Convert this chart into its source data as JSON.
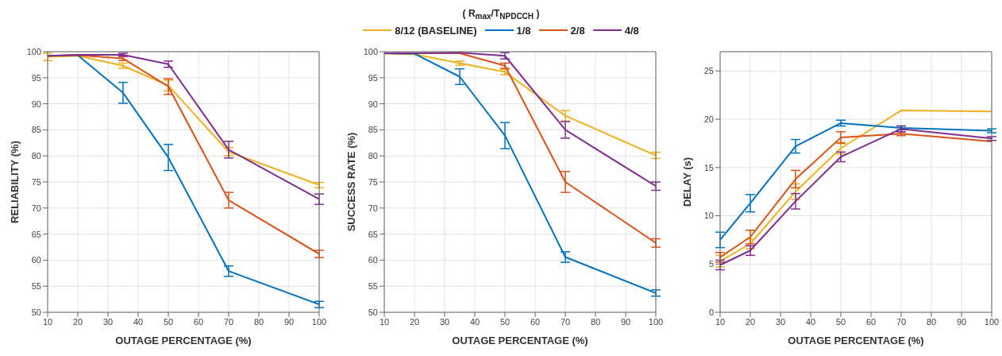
{
  "chart_data": [
    {
      "type": "line",
      "xlabel": "OUTAGE PERCENTAGE (%)",
      "ylabel": "RELIABILITY (%)",
      "legend_title": "( R$_{max}$/T$_{NPDCCH}$ )",
      "legend": "top",
      "grid": true,
      "marker": "none",
      "line_style": "solid",
      "x": [
        10,
        20,
        35,
        50,
        70,
        100
      ],
      "xlim": [
        10,
        100
      ],
      "xticks": [
        10,
        20,
        30,
        40,
        50,
        60,
        70,
        80,
        90,
        100
      ],
      "ylim": [
        50,
        100
      ],
      "yticks": [
        50,
        55,
        60,
        65,
        70,
        75,
        80,
        85,
        90,
        95,
        100
      ],
      "series": [
        {
          "name": "8/12 (BASELINE)",
          "color": "#edb120",
          "values": [
            99,
            99.2,
            97.3,
            93.5,
            80.8,
            74.4
          ],
          "errors": [
            0.7,
            null,
            0.5,
            1,
            0.8,
            0.5
          ]
        },
        {
          "name": "1/8",
          "color": "#0072bd",
          "values": [
            99.2,
            99.3,
            92.1,
            79.7,
            57.9,
            51.5
          ],
          "errors": [
            null,
            null,
            2,
            2.5,
            1,
            0.6
          ]
        },
        {
          "name": "2/8",
          "color": "#d95319",
          "values": [
            99.2,
            99.3,
            98.7,
            93.3,
            71.5,
            61.2
          ],
          "errors": [
            null,
            null,
            0.4,
            1.5,
            1.5,
            0.7
          ]
        },
        {
          "name": "4/8",
          "color": "#7e2f8e",
          "values": [
            99.2,
            99.4,
            99.4,
            97.6,
            81.2,
            71.7
          ],
          "errors": [
            null,
            null,
            0.3,
            0.6,
            1.6,
            1
          ]
        }
      ]
    },
    {
      "type": "line",
      "xlabel": "OUTAGE PERCENTAGE (%)",
      "ylabel": "SUCCESS RATE (%)",
      "grid": true,
      "marker": "none",
      "line_style": "solid",
      "x": [
        10,
        20,
        35,
        50,
        70,
        100
      ],
      "xlim": [
        10,
        100
      ],
      "xticks": [
        10,
        20,
        30,
        40,
        50,
        60,
        70,
        80,
        90,
        100
      ],
      "ylim": [
        50,
        100
      ],
      "yticks": [
        50,
        55,
        60,
        65,
        70,
        75,
        80,
        85,
        90,
        95,
        100
      ],
      "series": [
        {
          "color": "#edb120",
          "values": [
            99.6,
            99.5,
            97.8,
            96.1,
            87.7,
            80.1
          ],
          "errors": [
            null,
            null,
            0.4,
            0.5,
            1,
            0.6
          ]
        },
        {
          "color": "#0072bd",
          "values": [
            99.7,
            99.6,
            95.2,
            83.9,
            60.6,
            53.7
          ],
          "errors": [
            null,
            null,
            1.5,
            2.5,
            1,
            0.6
          ]
        },
        {
          "color": "#d95319",
          "values": [
            99.7,
            99.7,
            99.7,
            97.3,
            75,
            63.3
          ],
          "errors": [
            null,
            null,
            null,
            0.5,
            2,
            0.8
          ]
        },
        {
          "color": "#7e2f8e",
          "values": [
            99.7,
            99.7,
            99.8,
            99.2,
            85,
            74.2
          ],
          "errors": [
            null,
            null,
            null,
            0.6,
            1.6,
            0.8
          ]
        }
      ]
    },
    {
      "type": "line",
      "xlabel": "OUTAGE PERCENTAGE (%)",
      "ylabel": "DELAY (s)",
      "grid": true,
      "marker": "none",
      "line_style": "solid",
      "x": [
        10,
        20,
        35,
        50,
        70,
        100
      ],
      "xlim": [
        10,
        100
      ],
      "xticks": [
        10,
        20,
        30,
        40,
        50,
        60,
        70,
        80,
        90,
        100
      ],
      "ylim": [
        0,
        27
      ],
      "yticks": [
        0,
        5,
        10,
        15,
        20,
        25
      ],
      "series": [
        {
          "color": "#edb120",
          "values": [
            5.3,
            7.1,
            12.5,
            17,
            20.9,
            20.8
          ],
          "errors": [
            0.6,
            0.5,
            0.8,
            0.6,
            null,
            null
          ]
        },
        {
          "color": "#0072bd",
          "values": [
            7.5,
            11.3,
            17.2,
            19.6,
            19.1,
            18.8
          ],
          "errors": [
            0.8,
            0.9,
            0.7,
            0.3,
            0.2,
            0.2
          ]
        },
        {
          "color": "#d95319",
          "values": [
            5.7,
            7.8,
            13.8,
            18.1,
            18.5,
            17.7
          ],
          "errors": [
            0.5,
            0.7,
            0.9,
            0.6,
            0.2,
            null
          ]
        },
        {
          "color": "#7e2f8e",
          "values": [
            4.9,
            6.4,
            11.5,
            16.1,
            19,
            18
          ],
          "errors": [
            0.5,
            0.5,
            0.8,
            0.5,
            0.3,
            0.2
          ]
        }
      ]
    }
  ]
}
